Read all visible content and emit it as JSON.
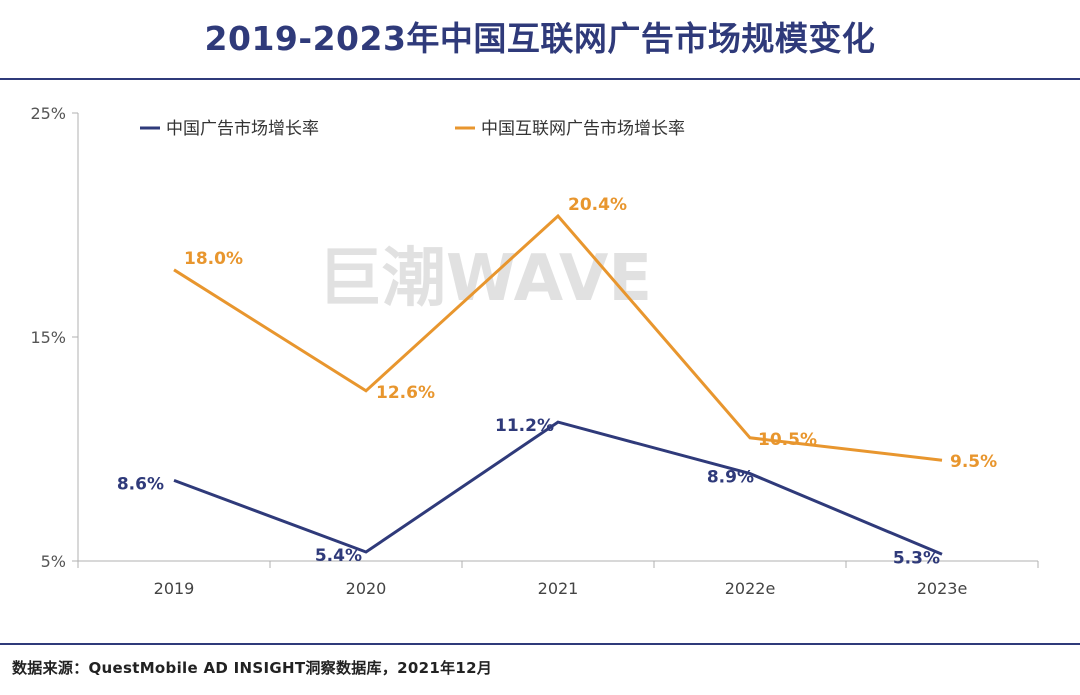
{
  "title": "2019-2023年中国互联网广告市场规模变化",
  "source": "数据来源：QuestMobile AD INSIGHT洞察数据库，2021年12月",
  "watermark": "巨潮WAVE",
  "chart_data": {
    "type": "line",
    "categories": [
      "2019",
      "2020",
      "2021",
      "2022e",
      "2023e"
    ],
    "ylim": [
      5,
      25
    ],
    "yticks": [
      5,
      15,
      25
    ],
    "ytick_labels": [
      "5%",
      "15%",
      "25%"
    ],
    "series": [
      {
        "name": "中国广告市场增长率",
        "color": "#2f3a7a",
        "values": [
          8.6,
          5.4,
          11.2,
          8.9,
          5.3
        ],
        "labels": [
          "8.6%",
          "5.4%",
          "11.2%",
          "8.9%",
          "5.3%"
        ]
      },
      {
        "name": "中国互联网广告市场增长率",
        "color": "#e8962e",
        "values": [
          18.0,
          12.6,
          20.4,
          10.5,
          9.5
        ],
        "labels": [
          "18.0%",
          "12.6%",
          "20.4%",
          "10.5%",
          "9.5%"
        ]
      }
    ],
    "legend": "top-left"
  }
}
